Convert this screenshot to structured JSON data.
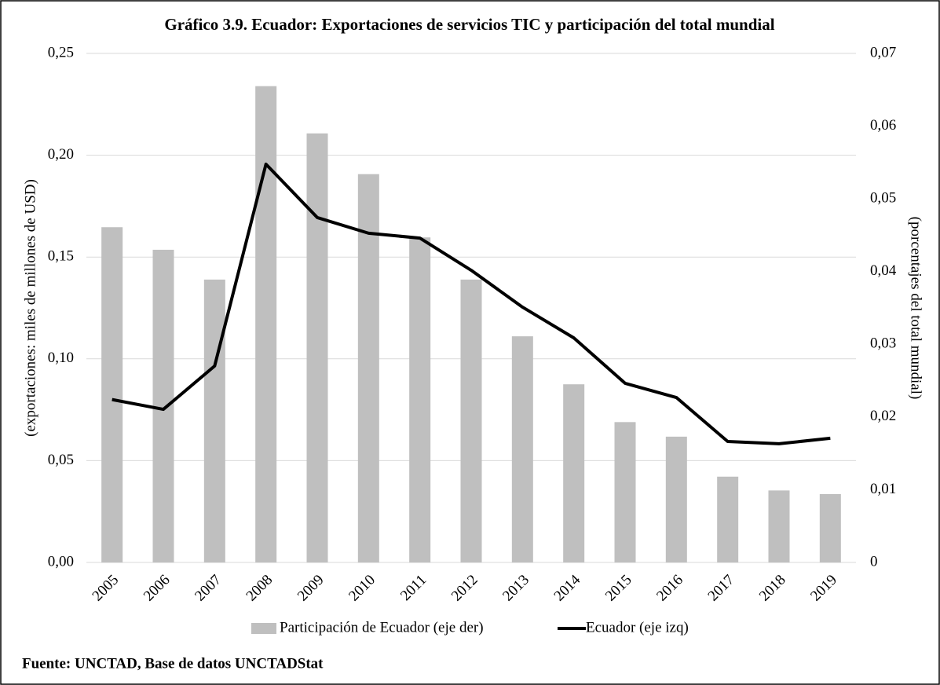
{
  "chart_data": {
    "type": "bar_line",
    "title": "Gráfico 3.9. Ecuador:  Exportaciones  de servicios  TIC y participación  del total mundial",
    "y_label": "(exportaciones: miles de millones de USD)",
    "y2_label": "(porcentajes del total mundial)",
    "source": "Fuente: UNCTAD,  Base de datos UNCTADStat",
    "categories": [
      "2005",
      "2006",
      "2007",
      "2008",
      "2009",
      "2010",
      "2011",
      "2012",
      "2013",
      "2014",
      "2015",
      "2016",
      "2017",
      "2018",
      "2019"
    ],
    "series": [
      {
        "name": "Participación de Ecuador (eje der)",
        "type": "bar",
        "axis": "y2",
        "color": "#bfbfbf",
        "values": [
          0.0461,
          0.043,
          0.0389,
          0.0655,
          0.059,
          0.0534,
          0.0447,
          0.0389,
          0.0311,
          0.0245,
          0.0193,
          0.0173,
          0.0118,
          0.0099,
          0.0094
        ]
      },
      {
        "name": "Ecuador (eje izq)",
        "type": "line",
        "axis": "y",
        "color": "#000000",
        "values": [
          0.08,
          0.0752,
          0.0965,
          0.1956,
          0.1694,
          0.1617,
          0.1593,
          0.1435,
          0.1254,
          0.1103,
          0.088,
          0.081,
          0.0594,
          0.0583,
          0.061
        ]
      }
    ],
    "ylim": [
      0,
      0.25
    ],
    "yticks": [
      {
        "value": 0,
        "label": "0,00"
      },
      {
        "value": 0.05,
        "label": "0,05"
      },
      {
        "value": 0.1,
        "label": "0,10"
      },
      {
        "value": 0.15,
        "label": "0,15"
      },
      {
        "value": 0.2,
        "label": "0,20"
      },
      {
        "value": 0.25,
        "label": "0,25"
      }
    ],
    "y2lim": [
      0,
      0.07
    ],
    "y2ticks": [
      0,
      {
        "value": 0.01,
        "label": "0,01"
      },
      {
        "value": 0.02,
        "label": "0,02"
      },
      {
        "value": 0.03,
        "label": "0,03"
      },
      {
        "value": 0.04,
        "label": "0,04"
      },
      {
        "value": 0.05,
        "label": "0,05"
      },
      {
        "value": 0.06,
        "label": "0,06"
      },
      {
        "value": 0.07,
        "label": "0,07"
      }
    ],
    "grid": true,
    "legend": "bottom"
  }
}
